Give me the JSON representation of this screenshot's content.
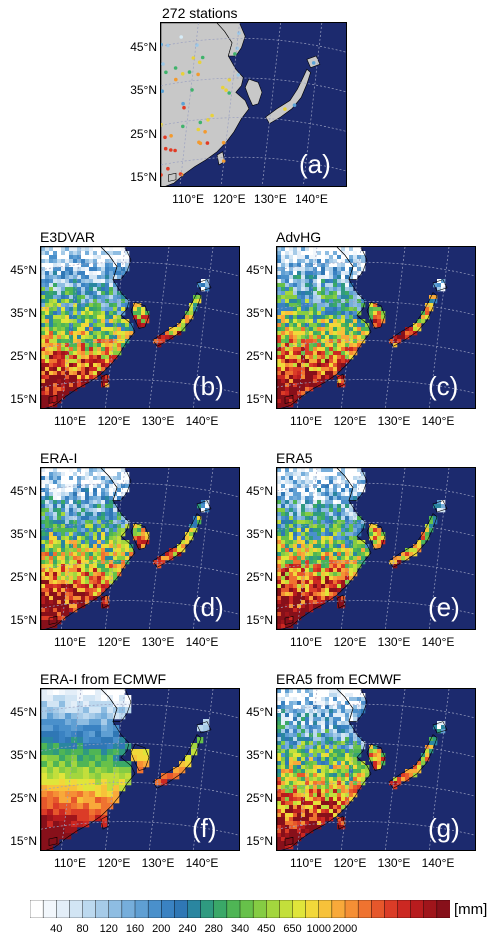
{
  "panels": [
    {
      "id": "a",
      "title": "272 stations",
      "tag": "(a)",
      "kind": "stations"
    },
    {
      "id": "b",
      "title": "E3DVAR",
      "tag": "(b)",
      "kind": "field"
    },
    {
      "id": "c",
      "title": "AdvHG",
      "tag": "(c)",
      "kind": "field"
    },
    {
      "id": "d",
      "title": "ERA-I",
      "tag": "(d)",
      "kind": "field"
    },
    {
      "id": "e",
      "title": "ERA5",
      "tag": "(e)",
      "kind": "field"
    },
    {
      "id": "f",
      "title": "ERA-I from ECMWF",
      "tag": "(f)",
      "kind": "smooth"
    },
    {
      "id": "g",
      "title": "ERA5 from ECMWF",
      "tag": "(g)",
      "kind": "field"
    }
  ],
  "lat_labels": [
    "45°N",
    "35°N",
    "25°N",
    "15°N"
  ],
  "lon_labels": [
    "110°E",
    "120°E",
    "130°E",
    "140°E"
  ],
  "colorbar": {
    "unit": "[mm]",
    "tick_labels": [
      "40",
      "80",
      "120",
      "160",
      "200",
      "240",
      "280",
      "340",
      "450",
      "650",
      "1000",
      "2000"
    ],
    "colors": [
      "#ffffff",
      "#f2f7fc",
      "#e3eef8",
      "#d2e5f4",
      "#bcd9ef",
      "#a6cbe8",
      "#8ebde2",
      "#76aedb",
      "#5f9fd3",
      "#4a90cb",
      "#3a82c2",
      "#2f77b5",
      "#2a86a0",
      "#2f9a80",
      "#3aa868",
      "#4fb555",
      "#67c14a",
      "#85cc43",
      "#a3d63e",
      "#c3df3b",
      "#e0e53a",
      "#f2d83a",
      "#f7c23a",
      "#f8a93a",
      "#f58f35",
      "#ef7330",
      "#e6572b",
      "#db3c27",
      "#cc2822",
      "#b81c1e",
      "#a0151b",
      "#87101a"
    ]
  },
  "colors": {
    "ocean": "#1c2a6e",
    "land_outline": "#000000",
    "grid": "#9aa0c0",
    "label_tag": "#ffffff"
  }
}
